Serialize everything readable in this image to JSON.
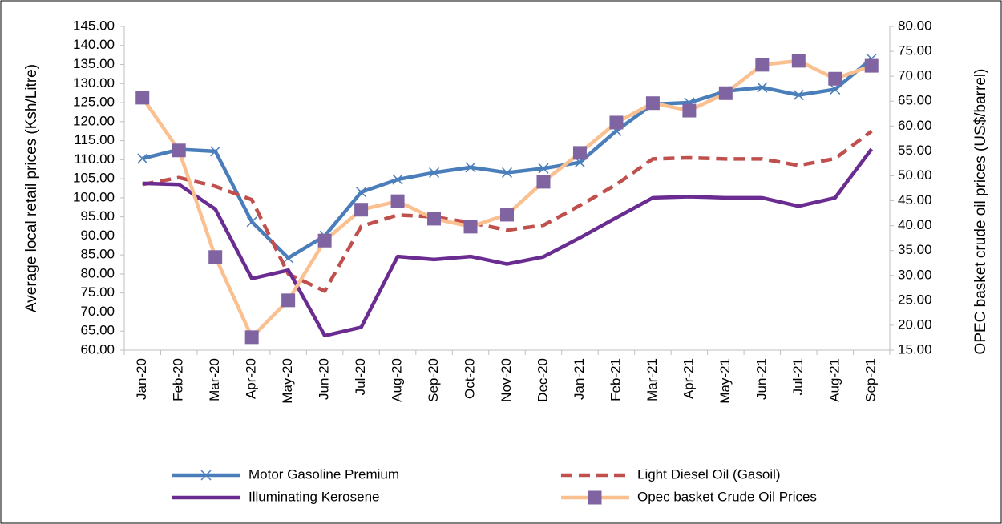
{
  "chart_data": {
    "type": "line",
    "y_label": "Average local retail prices (Ksh/Litre)",
    "y2_label": "OPEC basket crude oil prices (US$/barrel)",
    "categories": [
      "Jan-20",
      "Feb-20",
      "Mar-20",
      "Apr-20",
      "May-20",
      "Jun-20",
      "Jul-20",
      "Aug-20",
      "Sep-20",
      "Oct-20",
      "Nov-20",
      "Dec-20",
      "Jan-21",
      "Feb-21",
      "Mar-21",
      "Apr-21",
      "May-21",
      "Jun-21",
      "Jul-21",
      "Aug-21",
      "Sep-21"
    ],
    "ylim": [
      60,
      145
    ],
    "yticks": [
      {
        "value": 60,
        "label": "60.00"
      },
      {
        "value": 65,
        "label": "65.00"
      },
      {
        "value": 70,
        "label": "70.00"
      },
      {
        "value": 75,
        "label": "75.00"
      },
      {
        "value": 80,
        "label": "80.00"
      },
      {
        "value": 85,
        "label": "85.00"
      },
      {
        "value": 90,
        "label": "90.00"
      },
      {
        "value": 95,
        "label": "95.00"
      },
      {
        "value": 100,
        "label": "100.00"
      },
      {
        "value": 105,
        "label": "105.00"
      },
      {
        "value": 110,
        "label": "110.00"
      },
      {
        "value": 115,
        "label": "115.00"
      },
      {
        "value": 120,
        "label": "120.00"
      },
      {
        "value": 125,
        "label": "125.00"
      },
      {
        "value": 130,
        "label": "130.00"
      },
      {
        "value": 135,
        "label": "135.00"
      },
      {
        "value": 140,
        "label": "140.00"
      },
      {
        "value": 145,
        "label": "145.00"
      }
    ],
    "y2lim": [
      15,
      80
    ],
    "y2ticks": [
      {
        "value": 15,
        "label": "15.00"
      },
      {
        "value": 20,
        "label": "20.00"
      },
      {
        "value": 25,
        "label": "25.00"
      },
      {
        "value": 30,
        "label": "30.00"
      },
      {
        "value": 35,
        "label": "35.00"
      },
      {
        "value": 40,
        "label": "40.00"
      },
      {
        "value": 45,
        "label": "45.00"
      },
      {
        "value": 50,
        "label": "50.00"
      },
      {
        "value": 55,
        "label": "55.00"
      },
      {
        "value": 60,
        "label": "60.00"
      },
      {
        "value": 65,
        "label": "65.00"
      },
      {
        "value": 70,
        "label": "70.00"
      },
      {
        "value": 75,
        "label": "75.00"
      },
      {
        "value": 80,
        "label": "80.00"
      }
    ],
    "legend": "bottom",
    "series": [
      {
        "name": "Motor Gasoline Premium",
        "color": "#4a7ebb",
        "marker": "x",
        "values": [
          110.3,
          112.7,
          112.2,
          93.7,
          84.2,
          90,
          101.5,
          104.8,
          106.6,
          108,
          106.6,
          107.7,
          109.3,
          117.6,
          124.6,
          125,
          128,
          129,
          127,
          128.5,
          136.5
        ]
      },
      {
        "name": "Light Diesel Oil (Gasoil)",
        "color": "#c0504d",
        "dash": true,
        "values": [
          103.5,
          105.3,
          103,
          99.5,
          80,
          75.5,
          92.5,
          95.5,
          95,
          93.5,
          91.5,
          92.8,
          98,
          103.5,
          110.2,
          110.5,
          110.2,
          110.2,
          108.5,
          110.3,
          117.5
        ]
      },
      {
        "name": "Illuminating Kerosene",
        "color": "#6a2c91",
        "values": [
          103.8,
          103.5,
          97,
          78.8,
          81,
          63.8,
          66,
          84.6,
          83.8,
          84.6,
          82.6,
          84.5,
          89.5,
          94.8,
          100,
          100.3,
          100,
          100,
          97.8,
          100,
          112.8
        ]
      },
      {
        "name": "Opec  basket Crude Oil Prices",
        "color": "#fac090",
        "marker": "square",
        "marker_color": "#8064a2",
        "axis": "y2",
        "values": [
          65.7,
          55.1,
          33.7,
          17.6,
          25,
          37,
          43.2,
          44.9,
          41.4,
          39.8,
          42.2,
          48.8,
          54.6,
          60.7,
          64.6,
          63.1,
          66.6,
          72.3,
          73.1,
          69.5,
          72.1
        ]
      }
    ]
  }
}
